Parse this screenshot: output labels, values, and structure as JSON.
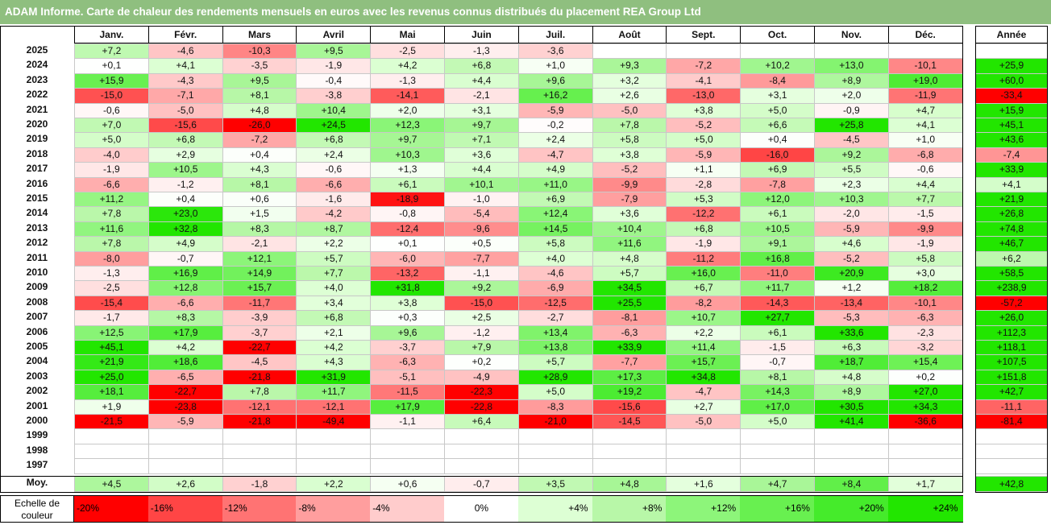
{
  "title": "ADAM Informe. Carte de chaleur des rendements mensuels en euros avec les revenus connus distribués du placement REA Group Ltd",
  "chart_data": {
    "type": "heatmap",
    "months": [
      "Janv.",
      "Févr.",
      "Mars",
      "Avril",
      "Mai",
      "Juin",
      "Juil.",
      "Août",
      "Sept.",
      "Oct.",
      "Nov.",
      "Déc."
    ],
    "year_header": "Année",
    "rows": [
      {
        "year": "2025",
        "values": [
          "+7,2",
          "-4,6",
          "-10,3",
          "+9,5",
          "-2,5",
          "-1,3",
          "-3,6",
          "",
          "",
          "",
          "",
          ""
        ],
        "annual": ""
      },
      {
        "year": "2024",
        "values": [
          "+0,1",
          "+4,1",
          "-3,5",
          "-1,9",
          "+4,2",
          "+6,8",
          "+1,0",
          "+9,3",
          "-7,2",
          "+10,2",
          "+13,0",
          "-10,1"
        ],
        "annual": "+25,9"
      },
      {
        "year": "2023",
        "values": [
          "+15,9",
          "-4,3",
          "+9,5",
          "-0,4",
          "-1,3",
          "+4,4",
          "+9,6",
          "+3,2",
          "-4,1",
          "-8,4",
          "+8,9",
          "+19,0"
        ],
        "annual": "+60,0"
      },
      {
        "year": "2022",
        "values": [
          "-15,0",
          "-7,1",
          "+8,1",
          "-3,8",
          "-14,1",
          "-2,1",
          "+16,2",
          "+2,6",
          "-13,0",
          "+3,1",
          "+2,0",
          "-11,9"
        ],
        "annual": "-33,4"
      },
      {
        "year": "2021",
        "values": [
          "-0,6",
          "-5,0",
          "+4,8",
          "+10,4",
          "+2,0",
          "+3,1",
          "-5,9",
          "-5,0",
          "+3,8",
          "+5,0",
          "-0,9",
          "+4,7"
        ],
        "annual": "+15,9"
      },
      {
        "year": "2020",
        "values": [
          "+7,0",
          "-15,6",
          "-26,0",
          "+24,5",
          "+12,3",
          "+9,7",
          "-0,2",
          "+7,8",
          "-5,2",
          "+6,6",
          "+25,8",
          "+4,1"
        ],
        "annual": "+45,1"
      },
      {
        "year": "2019",
        "values": [
          "+5,0",
          "+6,8",
          "-7,2",
          "+6,8",
          "+9,7",
          "+7,1",
          "+2,4",
          "+5,8",
          "+5,0",
          "+0,4",
          "-4,5",
          "+1,0"
        ],
        "annual": "+43,6"
      },
      {
        "year": "2018",
        "values": [
          "-4,0",
          "+2,9",
          "+0,4",
          "+2,4",
          "+10,3",
          "+3,6",
          "-4,7",
          "+3,8",
          "-5,9",
          "-16,0",
          "+9,2",
          "-6,8"
        ],
        "annual": "-7,4"
      },
      {
        "year": "2017",
        "values": [
          "-1,9",
          "+10,5",
          "+4,3",
          "-0,6",
          "+1,3",
          "+4,4",
          "+4,9",
          "-5,2",
          "+1,1",
          "+6,9",
          "+5,5",
          "-0,6"
        ],
        "annual": "+33,9"
      },
      {
        "year": "2016",
        "values": [
          "-6,6",
          "-1,2",
          "+8,1",
          "-6,6",
          "+6,1",
          "+10,1",
          "+11,0",
          "-9,9",
          "-2,8",
          "-7,8",
          "+2,3",
          "+4,4"
        ],
        "annual": "+4,1"
      },
      {
        "year": "2015",
        "values": [
          "+11,2",
          "+0,4",
          "+0,6",
          "-1,6",
          "-18,9",
          "-1,0",
          "+6,9",
          "-7,9",
          "+5,3",
          "+12,0",
          "+10,3",
          "+7,7"
        ],
        "annual": "+21,9"
      },
      {
        "year": "2014",
        "values": [
          "+7,8",
          "+23,0",
          "+1,5",
          "-4,2",
          "-0,8",
          "-5,4",
          "+12,4",
          "+3,6",
          "-12,2",
          "+6,1",
          "-2,0",
          "-1,5"
        ],
        "annual": "+26,8"
      },
      {
        "year": "2013",
        "values": [
          "+11,6",
          "+32,8",
          "+8,3",
          "+8,7",
          "-12,4",
          "-9,6",
          "+14,5",
          "+10,4",
          "+6,8",
          "+10,5",
          "-5,9",
          "-9,9"
        ],
        "annual": "+74,8"
      },
      {
        "year": "2012",
        "values": [
          "+7,8",
          "+4,9",
          "-2,1",
          "+2,2",
          "+0,1",
          "+0,5",
          "+5,8",
          "+11,6",
          "-1,9",
          "+9,1",
          "+4,6",
          "-1,9"
        ],
        "annual": "+46,7"
      },
      {
        "year": "2011",
        "values": [
          "-8,0",
          "-0,7",
          "+12,1",
          "+5,7",
          "-6,0",
          "-7,7",
          "+4,0",
          "+4,8",
          "-11,2",
          "+16,8",
          "-5,2",
          "+5,8"
        ],
        "annual": "+6,2"
      },
      {
        "year": "2010",
        "values": [
          "-1,3",
          "+16,9",
          "+14,9",
          "+7,7",
          "-13,2",
          "-1,1",
          "-4,6",
          "+5,7",
          "+16,0",
          "-11,0",
          "+20,9",
          "+3,0"
        ],
        "annual": "+58,5"
      },
      {
        "year": "2009",
        "values": [
          "-2,5",
          "+12,8",
          "+15,7",
          "+4,0",
          "+31,8",
          "+9,2",
          "-6,9",
          "+34,5",
          "+6,7",
          "+11,7",
          "+1,2",
          "+18,2"
        ],
        "annual": "+238,9"
      },
      {
        "year": "2008",
        "values": [
          "-15,4",
          "-6,6",
          "-11,7",
          "+3,4",
          "+3,8",
          "-15,0",
          "-12,5",
          "+25,5",
          "-8,2",
          "-14,3",
          "-13,4",
          "-10,1"
        ],
        "annual": "-57,2"
      },
      {
        "year": "2007",
        "values": [
          "-1,7",
          "+8,3",
          "-3,9",
          "+6,8",
          "+0,3",
          "+2,5",
          "-2,7",
          "-8,1",
          "+10,7",
          "+27,7",
          "-5,3",
          "-6,3"
        ],
        "annual": "+26,0"
      },
      {
        "year": "2006",
        "values": [
          "+12,5",
          "+17,9",
          "-3,7",
          "+2,1",
          "+9,6",
          "-1,2",
          "+13,4",
          "-6,3",
          "+2,2",
          "+6,1",
          "+33,6",
          "-2,3"
        ],
        "annual": "+112,3"
      },
      {
        "year": "2005",
        "values": [
          "+45,1",
          "+4,2",
          "-22,7",
          "+4,2",
          "-3,7",
          "+7,9",
          "+13,8",
          "+33,9",
          "+11,4",
          "-1,5",
          "+6,3",
          "-3,2"
        ],
        "annual": "+118,1"
      },
      {
        "year": "2004",
        "values": [
          "+21,9",
          "+18,6",
          "-4,5",
          "+4,3",
          "-6,3",
          "+0,2",
          "+5,7",
          "-7,7",
          "+15,7",
          "-0,7",
          "+18,7",
          "+15,4"
        ],
        "annual": "+107,5"
      },
      {
        "year": "2003",
        "values": [
          "+25,0",
          "-6,5",
          "-21,8",
          "+31,9",
          "-5,1",
          "-4,9",
          "+28,9",
          "+17,3",
          "+34,8",
          "+8,1",
          "+4,8",
          "+0,2"
        ],
        "annual": "+151,8"
      },
      {
        "year": "2002",
        "values": [
          "+18,1",
          "-22,7",
          "+7,8",
          "+11,7",
          "-11,5",
          "-22,3",
          "+5,0",
          "+19,2",
          "-4,7",
          "+14,3",
          "+8,9",
          "+27,0"
        ],
        "annual": "+42,7"
      },
      {
        "year": "2001",
        "values": [
          "+1,9",
          "-23,8",
          "-12,1",
          "-12,1",
          "+17,9",
          "-22,8",
          "-8,3",
          "-15,6",
          "+2,7",
          "+17,0",
          "+30,5",
          "+34,3"
        ],
        "annual": "-11,1"
      },
      {
        "year": "2000",
        "values": [
          "-21,5",
          "-5,9",
          "-21,8",
          "-49,4",
          "-1,1",
          "+6,4",
          "-21,0",
          "-14,5",
          "-5,0",
          "+5,0",
          "+41,4",
          "-36,6"
        ],
        "annual": "-81,4"
      },
      {
        "year": "1999",
        "values": [
          "",
          "",
          "",
          "",
          "",
          "",
          "",
          "",
          "",
          "",
          "",
          ""
        ],
        "annual": ""
      },
      {
        "year": "1998",
        "values": [
          "",
          "",
          "",
          "",
          "",
          "",
          "",
          "",
          "",
          "",
          "",
          ""
        ],
        "annual": ""
      },
      {
        "year": "1997",
        "values": [
          "",
          "",
          "",
          "",
          "",
          "",
          "",
          "",
          "",
          "",
          "",
          ""
        ],
        "annual": ""
      }
    ],
    "average_row": {
      "label": "Moy.",
      "values": [
        "+4,5",
        "+2,6",
        "-1,8",
        "+2,2",
        "+0,6",
        "-0,7",
        "+3,5",
        "+4,8",
        "+1,6",
        "+4,7",
        "+8,4",
        "+1,7"
      ],
      "annual": "+42,8"
    },
    "color_scale": {
      "label": "Echelle de couleur",
      "steps": [
        {
          "label": "-20%",
          "value": -20,
          "color": "#ff0000"
        },
        {
          "label": "-16%",
          "value": -16,
          "color": "#ff4545"
        },
        {
          "label": "-12%",
          "value": -12,
          "color": "#ff7373"
        },
        {
          "label": "-8%",
          "value": -8,
          "color": "#ff9e9e"
        },
        {
          "label": "-4%",
          "value": -4,
          "color": "#ffcccc"
        },
        {
          "label": "0%",
          "value": 0,
          "color": "#ffffff"
        },
        {
          "label": "+4%",
          "value": 4,
          "color": "#ddffd4"
        },
        {
          "label": "+8%",
          "value": 8,
          "color": "#b8f7a8"
        },
        {
          "label": "+12%",
          "value": 12,
          "color": "#8df57a"
        },
        {
          "label": "+16%",
          "value": 16,
          "color": "#68f050"
        },
        {
          "label": "+20%",
          "value": 20,
          "color": "#45eb2b"
        },
        {
          "label": "+24%",
          "value": 24,
          "color": "#22e600"
        }
      ]
    }
  }
}
